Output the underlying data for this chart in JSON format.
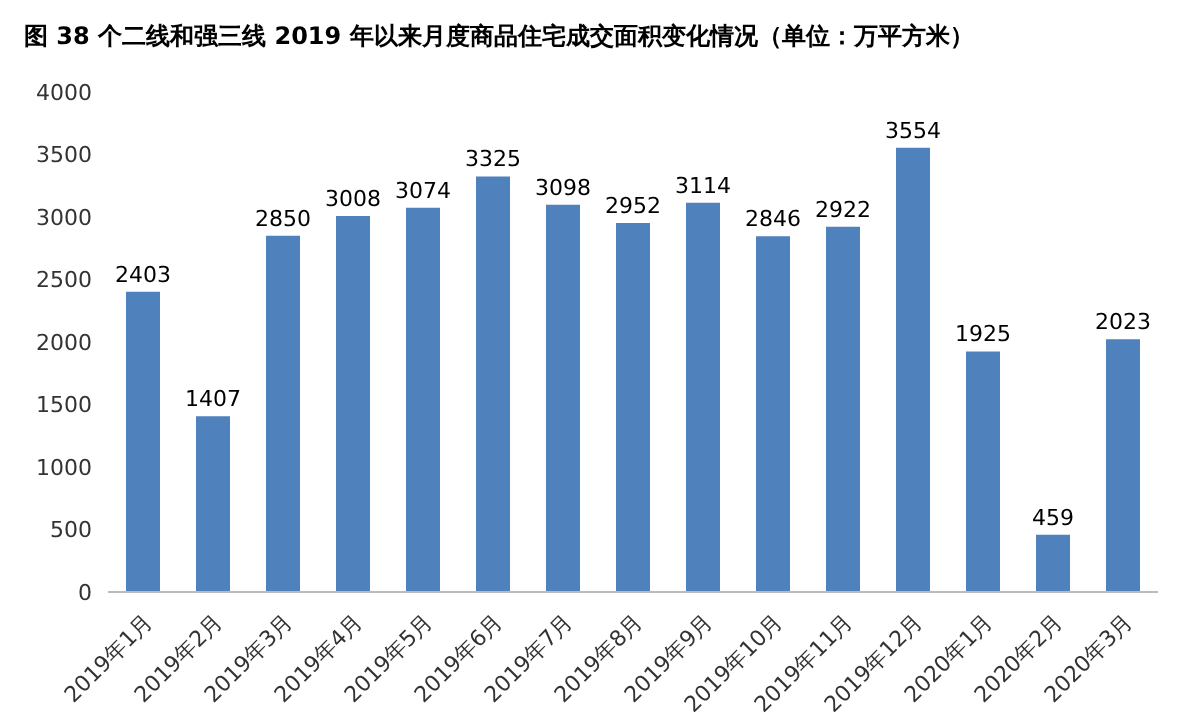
{
  "chart_data": {
    "type": "bar",
    "title": "图  38 个二线和强三线 2019 年以来月度商品住宅成交面积变化情况（单位：万平方米）",
    "categories": [
      "2019年1月",
      "2019年2月",
      "2019年3月",
      "2019年4月",
      "2019年5月",
      "2019年6月",
      "2019年7月",
      "2019年8月",
      "2019年9月",
      "2019年10月",
      "2019年11月",
      "2019年12月",
      "2020年1月",
      "2020年2月",
      "2020年3月"
    ],
    "values": [
      2403,
      1407,
      2850,
      3008,
      3074,
      3325,
      3098,
      2952,
      3114,
      2846,
      2922,
      3554,
      1925,
      459,
      2023
    ],
    "color": "#4f81bd",
    "ylim": [
      0,
      4000
    ],
    "yticks": [
      0,
      500,
      1000,
      1500,
      2000,
      2500,
      3000,
      3500,
      4000
    ],
    "grid": false,
    "data_labels": true
  }
}
